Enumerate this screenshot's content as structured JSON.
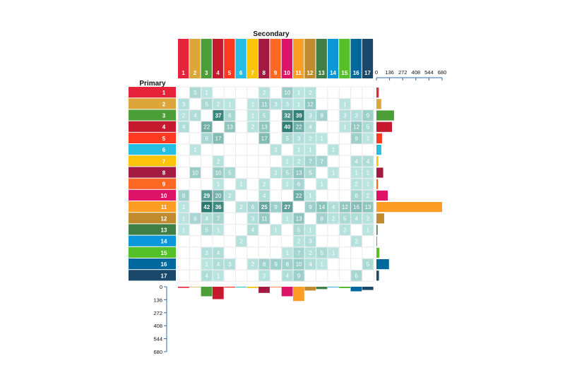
{
  "chart_data": {
    "type": "heatmap",
    "row_title": "Primary",
    "col_title": "Secondary",
    "categories": [
      "1",
      "2",
      "3",
      "4",
      "5",
      "6",
      "7",
      "8",
      "9",
      "10",
      "11",
      "12",
      "13",
      "14",
      "15",
      "16",
      "17"
    ],
    "category_colors": [
      "#e5243b",
      "#dda63a",
      "#4c9f38",
      "#c5192d",
      "#ff3a21",
      "#26bde2",
      "#fcc30b",
      "#a21942",
      "#fd6925",
      "#dd1367",
      "#fd9d24",
      "#bf8b2e",
      "#3f7e44",
      "#0a97d9",
      "#56c02b",
      "#00689d",
      "#19486a"
    ],
    "matrix": [
      [
        0,
        5,
        1,
        0,
        0,
        0,
        0,
        2,
        0,
        10,
        1,
        2,
        0,
        0,
        0,
        0,
        0
      ],
      [
        3,
        0,
        5,
        2,
        1,
        0,
        1,
        11,
        3,
        3,
        1,
        12,
        0,
        0,
        1,
        0,
        0
      ],
      [
        2,
        4,
        0,
        37,
        6,
        0,
        1,
        5,
        0,
        32,
        39,
        3,
        8,
        0,
        3,
        3,
        9
      ],
      [
        4,
        0,
        22,
        0,
        13,
        0,
        2,
        13,
        0,
        40,
        22,
        4,
        0,
        0,
        1,
        12,
        5
      ],
      [
        0,
        0,
        6,
        17,
        0,
        0,
        0,
        17,
        0,
        5,
        3,
        2,
        1,
        0,
        0,
        9,
        1
      ],
      [
        0,
        1,
        0,
        0,
        0,
        0,
        0,
        0,
        2,
        0,
        1,
        1,
        0,
        2,
        0,
        0,
        0
      ],
      [
        0,
        0,
        0,
        2,
        0,
        0,
        0,
        0,
        0,
        1,
        2,
        7,
        7,
        0,
        0,
        4,
        4
      ],
      [
        0,
        10,
        0,
        10,
        5,
        0,
        0,
        0,
        2,
        5,
        13,
        5,
        0,
        1,
        0,
        1,
        2
      ],
      [
        0,
        0,
        0,
        1,
        0,
        1,
        0,
        2,
        0,
        1,
        6,
        0,
        1,
        0,
        0,
        2,
        1
      ],
      [
        8,
        0,
        29,
        20,
        2,
        0,
        0,
        4,
        0,
        0,
        22,
        1,
        0,
        0,
        0,
        6,
        2
      ],
      [
        1,
        0,
        42,
        36,
        0,
        2,
        6,
        25,
        9,
        27,
        0,
        9,
        14,
        4,
        12,
        16,
        13
      ],
      [
        1,
        6,
        4,
        7,
        0,
        0,
        3,
        11,
        0,
        1,
        13,
        0,
        8,
        2,
        5,
        4,
        2
      ],
      [
        1,
        0,
        5,
        1,
        0,
        0,
        4,
        0,
        1,
        0,
        5,
        1,
        0,
        0,
        2,
        0,
        1
      ],
      [
        0,
        0,
        0,
        0,
        0,
        2,
        0,
        0,
        0,
        0,
        2,
        3,
        0,
        0,
        0,
        2,
        0
      ],
      [
        0,
        0,
        3,
        4,
        0,
        0,
        0,
        0,
        0,
        1,
        7,
        2,
        5,
        1,
        0,
        0,
        0
      ],
      [
        0,
        0,
        1,
        4,
        3,
        0,
        2,
        8,
        9,
        8,
        10,
        4,
        1,
        0,
        0,
        0,
        5
      ],
      [
        0,
        0,
        4,
        1,
        0,
        0,
        0,
        2,
        0,
        4,
        9,
        0,
        0,
        0,
        0,
        6,
        0
      ]
    ],
    "row_totals": [
      24,
      50,
      182,
      161,
      58,
      50,
      20,
      70,
      16,
      117,
      680,
      80,
      12,
      6,
      30,
      130,
      26
    ],
    "col_totals": [
      12,
      5,
      100,
      130,
      9,
      8,
      13,
      65,
      6,
      100,
      150,
      40,
      25,
      6,
      15,
      48,
      34
    ],
    "axis_range": [
      0,
      680
    ],
    "axis_ticks": [
      "0",
      "136",
      "272",
      "408",
      "544",
      "680"
    ]
  }
}
